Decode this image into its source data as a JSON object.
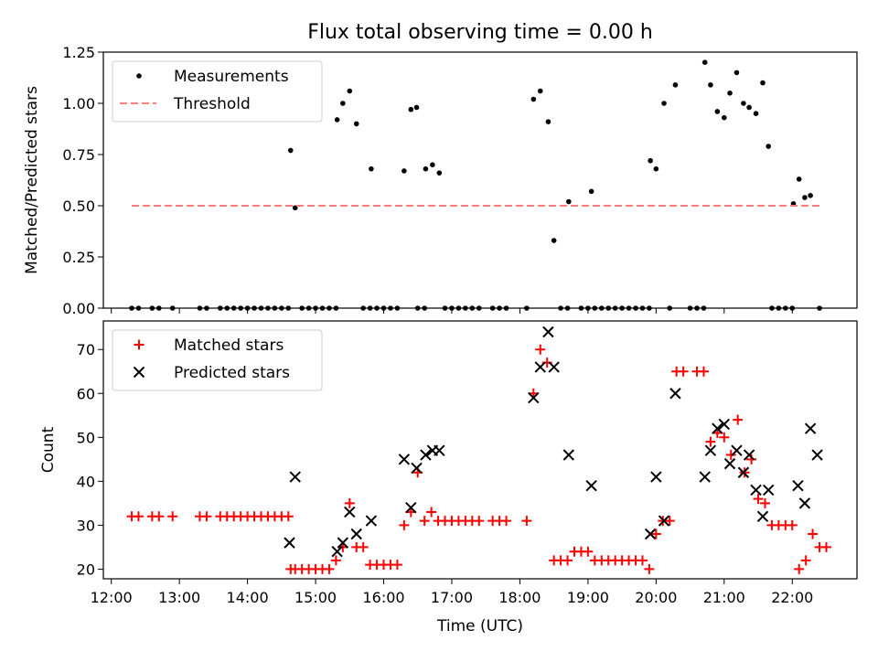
{
  "chart_data": [
    {
      "type": "scatter",
      "title": "Flux total observing time = 0.00 h",
      "xlabel": "",
      "ylabel": "Matched/Predicted stars",
      "xlim": [
        "11:53",
        "22:57"
      ],
      "ylim": [
        0,
        1.25
      ],
      "yticks": [
        "0.00",
        "0.25",
        "0.50",
        "0.75",
        "1.00",
        "1.25"
      ],
      "legend_position": "top-left",
      "series": [
        {
          "name": "Measurements",
          "marker": "dot",
          "color": "#000000",
          "points": [
            [
              "12:18",
              0
            ],
            [
              "12:24",
              0
            ],
            [
              "12:36",
              0
            ],
            [
              "12:42",
              0
            ],
            [
              "12:54",
              0
            ],
            [
              "13:18",
              0
            ],
            [
              "13:24",
              0
            ],
            [
              "13:36",
              0
            ],
            [
              "13:42",
              0
            ],
            [
              "13:48",
              0
            ],
            [
              "13:54",
              0
            ],
            [
              "14:00",
              0
            ],
            [
              "14:06",
              0
            ],
            [
              "14:12",
              0
            ],
            [
              "14:18",
              0
            ],
            [
              "14:24",
              0
            ],
            [
              "14:30",
              0
            ],
            [
              "14:36",
              0
            ],
            [
              "14:38",
              0.77
            ],
            [
              "14:42",
              0.49
            ],
            [
              "14:48",
              0
            ],
            [
              "14:54",
              0
            ],
            [
              "15:00",
              0
            ],
            [
              "15:06",
              0
            ],
            [
              "15:12",
              0
            ],
            [
              "15:18",
              0
            ],
            [
              "15:19",
              0.92
            ],
            [
              "15:24",
              1.0
            ],
            [
              "15:30",
              1.06
            ],
            [
              "15:36",
              0.9
            ],
            [
              "15:42",
              0
            ],
            [
              "15:48",
              0
            ],
            [
              "15:49",
              0.68
            ],
            [
              "15:54",
              0
            ],
            [
              "16:00",
              0
            ],
            [
              "16:06",
              0
            ],
            [
              "16:12",
              0
            ],
            [
              "16:18",
              0.67
            ],
            [
              "16:24",
              0.97
            ],
            [
              "16:29",
              0.98
            ],
            [
              "16:30",
              0
            ],
            [
              "16:36",
              0
            ],
            [
              "16:37",
              0.68
            ],
            [
              "16:43",
              0.7
            ],
            [
              "16:49",
              0.66
            ],
            [
              "16:54",
              0
            ],
            [
              "17:00",
              0
            ],
            [
              "17:06",
              0
            ],
            [
              "17:12",
              0
            ],
            [
              "17:18",
              0
            ],
            [
              "17:24",
              0
            ],
            [
              "17:36",
              0
            ],
            [
              "17:42",
              0
            ],
            [
              "17:48",
              0
            ],
            [
              "18:06",
              0
            ],
            [
              "18:12",
              1.02
            ],
            [
              "18:18",
              1.06
            ],
            [
              "18:25",
              0.91
            ],
            [
              "18:30",
              0.33
            ],
            [
              "18:36",
              0
            ],
            [
              "18:42",
              0
            ],
            [
              "18:43",
              0.52
            ],
            [
              "18:54",
              0
            ],
            [
              "19:00",
              0
            ],
            [
              "19:03",
              0.57
            ],
            [
              "19:06",
              0
            ],
            [
              "19:12",
              0
            ],
            [
              "19:18",
              0
            ],
            [
              "19:24",
              0
            ],
            [
              "19:30",
              0
            ],
            [
              "19:36",
              0
            ],
            [
              "19:42",
              0
            ],
            [
              "19:48",
              0
            ],
            [
              "19:54",
              0
            ],
            [
              "19:55",
              0.72
            ],
            [
              "20:00",
              0.68
            ],
            [
              "20:07",
              1.0
            ],
            [
              "20:12",
              0
            ],
            [
              "20:17",
              1.09
            ],
            [
              "20:30",
              0
            ],
            [
              "20:36",
              0
            ],
            [
              "20:42",
              0
            ],
            [
              "20:43",
              1.2
            ],
            [
              "20:48",
              1.09
            ],
            [
              "20:54",
              0.96
            ],
            [
              "21:00",
              0.93
            ],
            [
              "21:05",
              1.05
            ],
            [
              "21:11",
              1.15
            ],
            [
              "21:17",
              1.0
            ],
            [
              "21:22",
              0.98
            ],
            [
              "21:28",
              0.95
            ],
            [
              "21:34",
              1.1
            ],
            [
              "21:39",
              0.79
            ],
            [
              "21:42",
              0
            ],
            [
              "21:48",
              0
            ],
            [
              "21:54",
              0
            ],
            [
              "22:00",
              0
            ],
            [
              "22:01",
              0.51
            ],
            [
              "22:06",
              0.63
            ],
            [
              "22:11",
              0.54
            ],
            [
              "22:16",
              0.55
            ],
            [
              "22:24",
              0
            ]
          ]
        },
        {
          "name": "Threshold",
          "marker": "dashed-line",
          "color": "#ff7f7f",
          "points": [
            [
              "12:18",
              0.5
            ],
            [
              "22:24",
              0.5
            ]
          ]
        }
      ]
    },
    {
      "type": "scatter",
      "title": "",
      "xlabel": "Time (UTC)",
      "ylabel": "Count",
      "xlim": [
        "11:53",
        "22:57"
      ],
      "ylim": [
        17.8,
        76.5
      ],
      "yticks": [
        "20",
        "30",
        "40",
        "50",
        "60",
        "70"
      ],
      "xticks": [
        "12:00",
        "13:00",
        "14:00",
        "15:00",
        "16:00",
        "17:00",
        "18:00",
        "19:00",
        "20:00",
        "21:00",
        "22:00"
      ],
      "legend_position": "top-left",
      "series": [
        {
          "name": "Matched stars",
          "marker": "plus",
          "color": "#ff0000",
          "points": [
            [
              "12:18",
              32
            ],
            [
              "12:24",
              32
            ],
            [
              "12:36",
              32
            ],
            [
              "12:42",
              32
            ],
            [
              "12:54",
              32
            ],
            [
              "13:18",
              32
            ],
            [
              "13:24",
              32
            ],
            [
              "13:36",
              32
            ],
            [
              "13:42",
              32
            ],
            [
              "13:48",
              32
            ],
            [
              "13:54",
              32
            ],
            [
              "14:00",
              32
            ],
            [
              "14:06",
              32
            ],
            [
              "14:12",
              32
            ],
            [
              "14:18",
              32
            ],
            [
              "14:24",
              32
            ],
            [
              "14:30",
              32
            ],
            [
              "14:36",
              32
            ],
            [
              "14:38",
              20
            ],
            [
              "14:42",
              20
            ],
            [
              "14:48",
              20
            ],
            [
              "14:54",
              20
            ],
            [
              "15:00",
              20
            ],
            [
              "15:06",
              20
            ],
            [
              "15:12",
              20
            ],
            [
              "15:18",
              22
            ],
            [
              "15:24",
              25
            ],
            [
              "15:30",
              35
            ],
            [
              "15:36",
              25
            ],
            [
              "15:42",
              25
            ],
            [
              "15:48",
              21
            ],
            [
              "15:54",
              21
            ],
            [
              "16:00",
              21
            ],
            [
              "16:06",
              21
            ],
            [
              "16:12",
              21
            ],
            [
              "16:18",
              30
            ],
            [
              "16:24",
              33
            ],
            [
              "16:30",
              42
            ],
            [
              "16:36",
              31
            ],
            [
              "16:42",
              33
            ],
            [
              "16:48",
              31
            ],
            [
              "16:54",
              31
            ],
            [
              "17:00",
              31
            ],
            [
              "17:06",
              31
            ],
            [
              "17:12",
              31
            ],
            [
              "17:18",
              31
            ],
            [
              "17:24",
              31
            ],
            [
              "17:36",
              31
            ],
            [
              "17:42",
              31
            ],
            [
              "17:48",
              31
            ],
            [
              "18:06",
              31
            ],
            [
              "18:12",
              60
            ],
            [
              "18:18",
              70
            ],
            [
              "18:24",
              67
            ],
            [
              "18:30",
              22
            ],
            [
              "18:36",
              22
            ],
            [
              "18:42",
              22
            ],
            [
              "18:48",
              24
            ],
            [
              "18:54",
              24
            ],
            [
              "19:00",
              24
            ],
            [
              "19:06",
              22
            ],
            [
              "19:12",
              22
            ],
            [
              "19:18",
              22
            ],
            [
              "19:24",
              22
            ],
            [
              "19:30",
              22
            ],
            [
              "19:36",
              22
            ],
            [
              "19:42",
              22
            ],
            [
              "19:48",
              22
            ],
            [
              "19:54",
              20
            ],
            [
              "20:00",
              28
            ],
            [
              "20:06",
              31
            ],
            [
              "20:12",
              31
            ],
            [
              "20:18",
              65
            ],
            [
              "20:24",
              65
            ],
            [
              "20:36",
              65
            ],
            [
              "20:42",
              65
            ],
            [
              "20:48",
              49
            ],
            [
              "20:54",
              51
            ],
            [
              "21:00",
              50
            ],
            [
              "21:06",
              46
            ],
            [
              "21:12",
              54
            ],
            [
              "21:18",
              42
            ],
            [
              "21:24",
              45
            ],
            [
              "21:30",
              36
            ],
            [
              "21:36",
              35
            ],
            [
              "21:42",
              30
            ],
            [
              "21:48",
              30
            ],
            [
              "21:54",
              30
            ],
            [
              "22:00",
              30
            ],
            [
              "22:06",
              20
            ],
            [
              "22:12",
              22
            ],
            [
              "22:18",
              28
            ],
            [
              "22:24",
              25
            ],
            [
              "22:30",
              25
            ]
          ]
        },
        {
          "name": "Predicted stars",
          "marker": "x",
          "color": "#000000",
          "points": [
            [
              "14:37",
              26
            ],
            [
              "14:42",
              41
            ],
            [
              "15:19",
              24
            ],
            [
              "15:24",
              26
            ],
            [
              "15:30",
              33
            ],
            [
              "15:36",
              28
            ],
            [
              "15:49",
              31
            ],
            [
              "16:18",
              45
            ],
            [
              "16:24",
              34
            ],
            [
              "16:29",
              43
            ],
            [
              "16:37",
              46
            ],
            [
              "16:43",
              47
            ],
            [
              "16:49",
              47
            ],
            [
              "18:12",
              59
            ],
            [
              "18:18",
              66
            ],
            [
              "18:25",
              74
            ],
            [
              "18:30",
              66
            ],
            [
              "18:43",
              46
            ],
            [
              "19:03",
              39
            ],
            [
              "19:55",
              28
            ],
            [
              "20:00",
              41
            ],
            [
              "20:07",
              31
            ],
            [
              "20:17",
              60
            ],
            [
              "20:43",
              41
            ],
            [
              "20:48",
              47
            ],
            [
              "20:54",
              52
            ],
            [
              "21:00",
              53
            ],
            [
              "21:05",
              44
            ],
            [
              "21:11",
              47
            ],
            [
              "21:17",
              42
            ],
            [
              "21:22",
              46
            ],
            [
              "21:28",
              38
            ],
            [
              "21:34",
              32
            ],
            [
              "21:39",
              38
            ],
            [
              "22:05",
              39
            ],
            [
              "22:11",
              35
            ],
            [
              "22:16",
              52
            ],
            [
              "22:22",
              46
            ]
          ]
        }
      ]
    }
  ]
}
